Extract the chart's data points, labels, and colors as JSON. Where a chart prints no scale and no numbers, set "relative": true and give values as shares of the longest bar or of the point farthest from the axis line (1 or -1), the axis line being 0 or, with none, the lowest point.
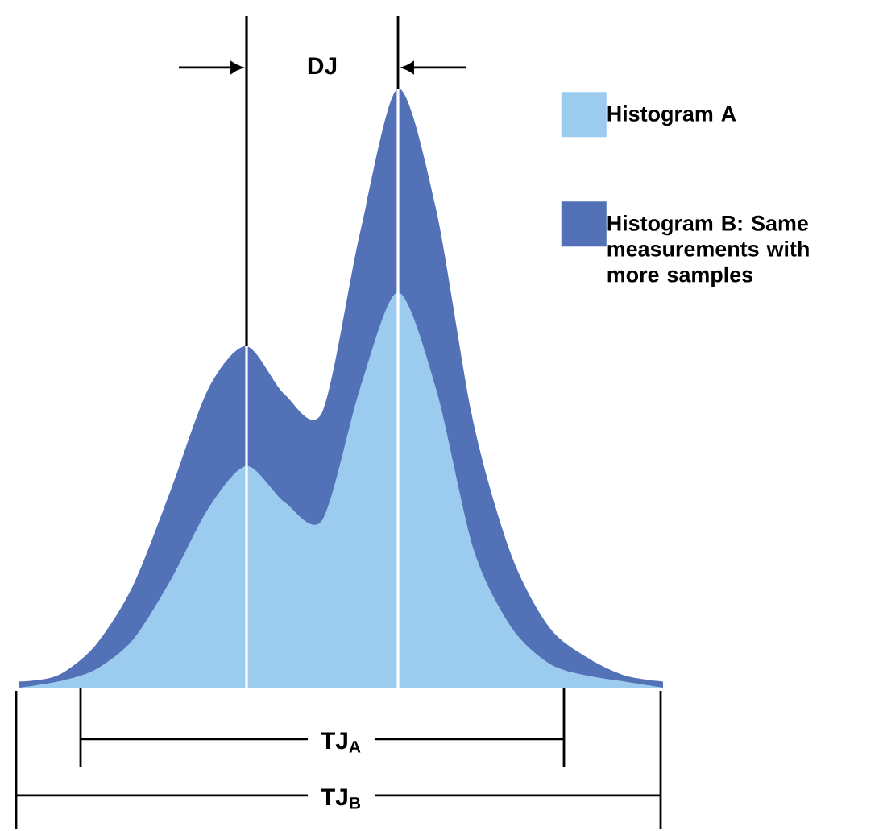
{
  "chart_data": {
    "type": "area",
    "relative": true,
    "legend": "right",
    "categories": [
      null,
      null,
      null,
      null,
      null,
      null,
      null,
      null,
      null,
      null,
      null,
      null,
      null,
      null,
      null,
      null,
      null,
      null
    ],
    "series": [
      {
        "name": "Histogram A",
        "color": "#9ccbf0",
        "values": [
          0,
          0.01,
          0.03,
          0.08,
          0.18,
          0.3,
          0.37,
          0.31,
          0.28,
          0.5,
          0.66,
          0.5,
          0.23,
          0.1,
          0.04,
          0.02,
          0.01,
          0
        ]
      },
      {
        "name": "Histogram B: Same measurements with more samples",
        "color": "#5371b6",
        "values": [
          0.01,
          0.02,
          0.07,
          0.17,
          0.33,
          0.5,
          0.57,
          0.49,
          0.46,
          0.76,
          1,
          0.8,
          0.44,
          0.22,
          0.1,
          0.05,
          0.02,
          0.01
        ]
      }
    ],
    "annotations": [
      "DJ",
      "TJ$_{A}$",
      "TJ$_{B}$"
    ]
  }
}
